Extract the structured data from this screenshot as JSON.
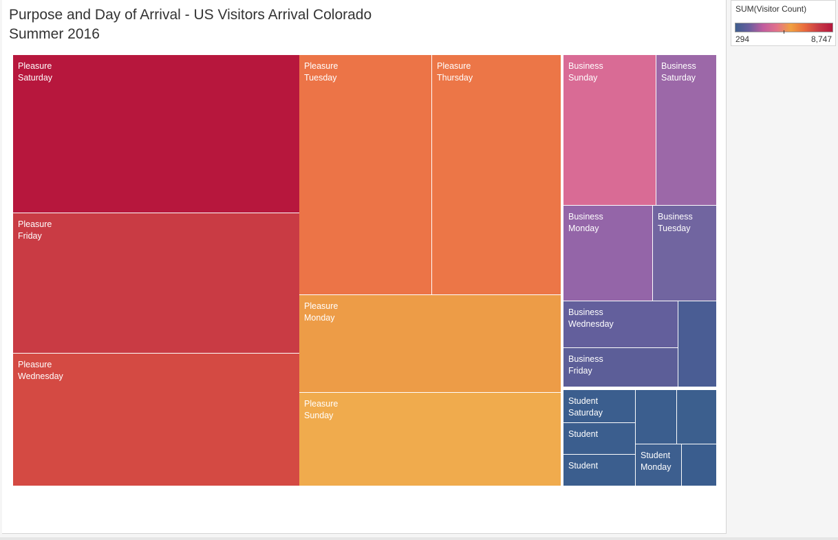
{
  "title": "Purpose and Day of Arrival - US Visitors Arrival Colorado\nSummer 2016",
  "legend": {
    "title": "SUM(Visitor Count)",
    "min_label": "294",
    "max_label": "8,747",
    "min_value": 294,
    "max_value": 8747,
    "colors": [
      "#3e5e8e",
      "#6a5e9e",
      "#c15d9e",
      "#e2728a",
      "#f0a040",
      "#e86a3e",
      "#c73a45",
      "#b5173e"
    ]
  },
  "chart_data": {
    "type": "treemap",
    "measure": "SUM(Visitor Count)",
    "tiles": [
      {
        "purpose": "Pleasure",
        "day": "Saturday",
        "label": "Pleasure\nSaturday",
        "color": "#b7173d",
        "value": 8747
      },
      {
        "purpose": "Pleasure",
        "day": "Friday",
        "label": "Pleasure\nFriday",
        "color": "#c93b44",
        "value": 7700
      },
      {
        "purpose": "Pleasure",
        "day": "Wednesday",
        "label": "Pleasure\nWednesday",
        "color": "#d44a43",
        "value": 7200
      },
      {
        "purpose": "Pleasure",
        "day": "Tuesday",
        "label": "Pleasure\nTuesday",
        "color": "#ec7447",
        "value": 6200
      },
      {
        "purpose": "Pleasure",
        "day": "Thursday",
        "label": "Pleasure\nThursday",
        "color": "#ec7647",
        "value": 6100
      },
      {
        "purpose": "Pleasure",
        "day": "Monday",
        "label": "Pleasure\nMonday",
        "color": "#ed9c47",
        "value": 5000
      },
      {
        "purpose": "Pleasure",
        "day": "Sunday",
        "label": "Pleasure\nSunday",
        "color": "#f0ab4d",
        "value": 4800
      },
      {
        "purpose": "Business",
        "day": "Sunday",
        "label": "Business\nSunday",
        "color": "#d96b95",
        "value": 2700
      },
      {
        "purpose": "Business",
        "day": "Saturday",
        "label": "Business\nSaturday",
        "color": "#9c68a8",
        "value": 1700
      },
      {
        "purpose": "Business",
        "day": "Monday",
        "label": "Business\nMonday",
        "color": "#9465a8",
        "value": 1650
      },
      {
        "purpose": "Business",
        "day": "Tuesday",
        "label": "Business\nTuesday",
        "color": "#7165a0",
        "value": 1400
      },
      {
        "purpose": "Business",
        "day": "Wednesday",
        "label": "Business\nWednesday",
        "color": "#635f9c",
        "value": 1150
      },
      {
        "purpose": "Business",
        "day": "Friday",
        "label": "Business\nFriday",
        "color": "#5c5e98",
        "value": 1000
      },
      {
        "purpose": "Business",
        "day": "",
        "label": "",
        "color": "#4a5d94",
        "value": 700
      },
      {
        "purpose": "Student",
        "day": "Saturday",
        "label": "Student\nSaturday",
        "color": "#3b5e8e",
        "value": 500
      },
      {
        "purpose": "Student",
        "day": "",
        "label": "Student",
        "color": "#3b5e8e",
        "value": 450
      },
      {
        "purpose": "Student",
        "day": "",
        "label": "Student",
        "color": "#3b5e8e",
        "value": 450
      },
      {
        "purpose": "Student",
        "day": "",
        "label": "",
        "color": "#3b5e8e",
        "value": 400
      },
      {
        "purpose": "Student",
        "day": "",
        "label": "",
        "color": "#3c5f8e",
        "value": 380
      },
      {
        "purpose": "Student",
        "day": "Monday",
        "label": "Student\nMonday",
        "color": "#3d5f8f",
        "value": 330
      },
      {
        "purpose": "Student",
        "day": "",
        "label": "",
        "color": "#3a5d8e",
        "value": 294
      }
    ]
  }
}
